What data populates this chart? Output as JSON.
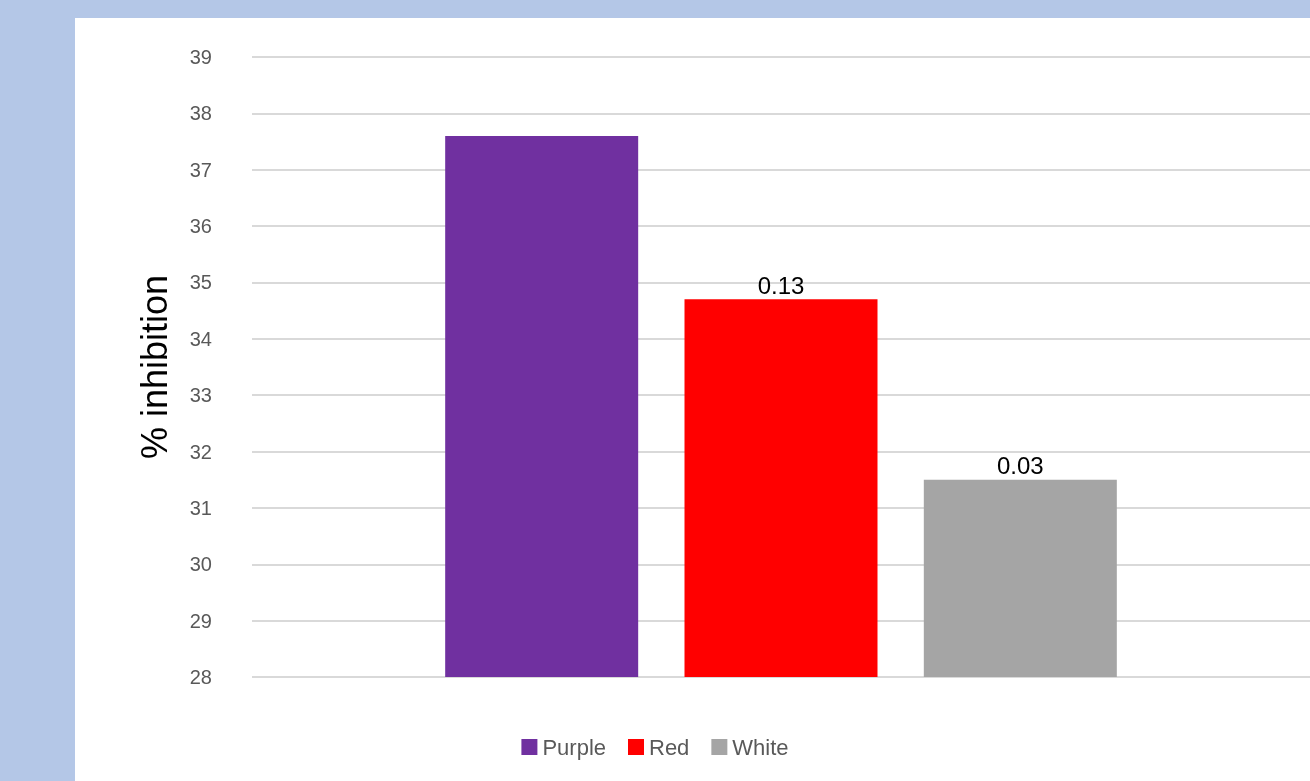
{
  "chart_data": {
    "type": "bar",
    "ylabel": "% inhibition",
    "categories": [
      null
    ],
    "series": [
      {
        "name": "Purple",
        "color": "#7030a0",
        "values": [
          37.6
        ]
      },
      {
        "name": "Red",
        "color": "#ff0000",
        "values": [
          34.7
        ]
      },
      {
        "name": "White",
        "color": "#a5a5a5",
        "values": [
          31.5
        ]
      }
    ],
    "annotations": [
      {
        "text": "0.13",
        "y": 34.7
      },
      {
        "text": "0.03",
        "y": 31.5
      }
    ],
    "ylim": [
      28,
      39
    ],
    "yticks": [
      28,
      29,
      30,
      31,
      32,
      33,
      34,
      35,
      36,
      37,
      38,
      39
    ],
    "grid": "y",
    "legend": "bottom"
  }
}
